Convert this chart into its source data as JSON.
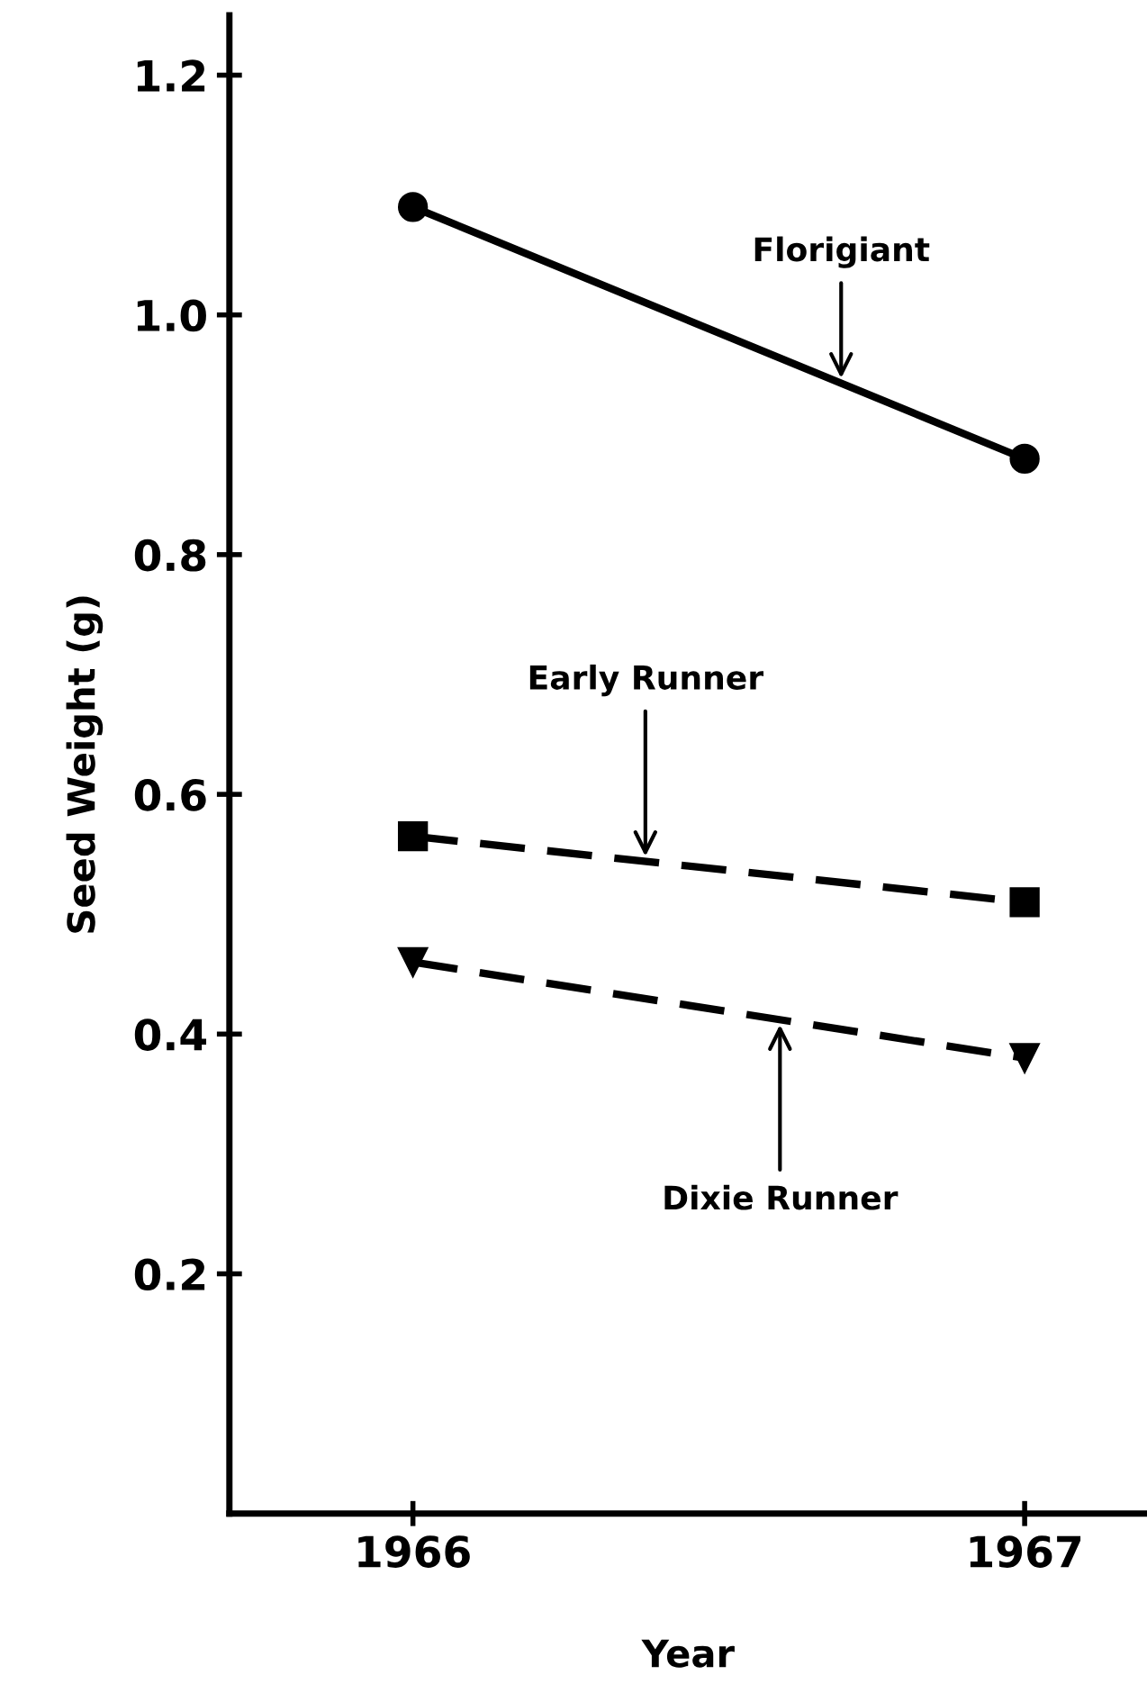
{
  "chart_data": {
    "type": "line",
    "xlabel": "Year",
    "ylabel": "Seed Weight (g)",
    "x": [
      1966,
      1967
    ],
    "xlim": [
      1965.7,
      1967.2
    ],
    "xticks": [
      1966,
      1967
    ],
    "ylim": [
      0,
      1.25
    ],
    "yticks": [
      {
        "value": 0.2,
        "label": "0.2"
      },
      {
        "value": 0.4,
        "label": "0.4"
      },
      {
        "value": 0.6,
        "label": "0.6"
      },
      {
        "value": 0.8,
        "label": "0.8"
      },
      {
        "value": 1.0,
        "label": "1.0"
      },
      {
        "value": 1.2,
        "label": "1.2"
      }
    ],
    "grid": false,
    "legend": false,
    "series": [
      {
        "name": "Florigiant",
        "color": "#000000",
        "values": [
          1.09,
          0.88
        ],
        "marker": "circle",
        "line_style": "solid"
      },
      {
        "name": "Early Runner",
        "color": "#000000",
        "values": [
          0.565,
          0.51
        ],
        "marker": "square",
        "line_style": "dashed"
      },
      {
        "name": "Dixie Runner",
        "color": "#000000",
        "values": [
          0.46,
          0.38
        ],
        "marker": "triangle",
        "line_style": "dashed"
      }
    ]
  }
}
